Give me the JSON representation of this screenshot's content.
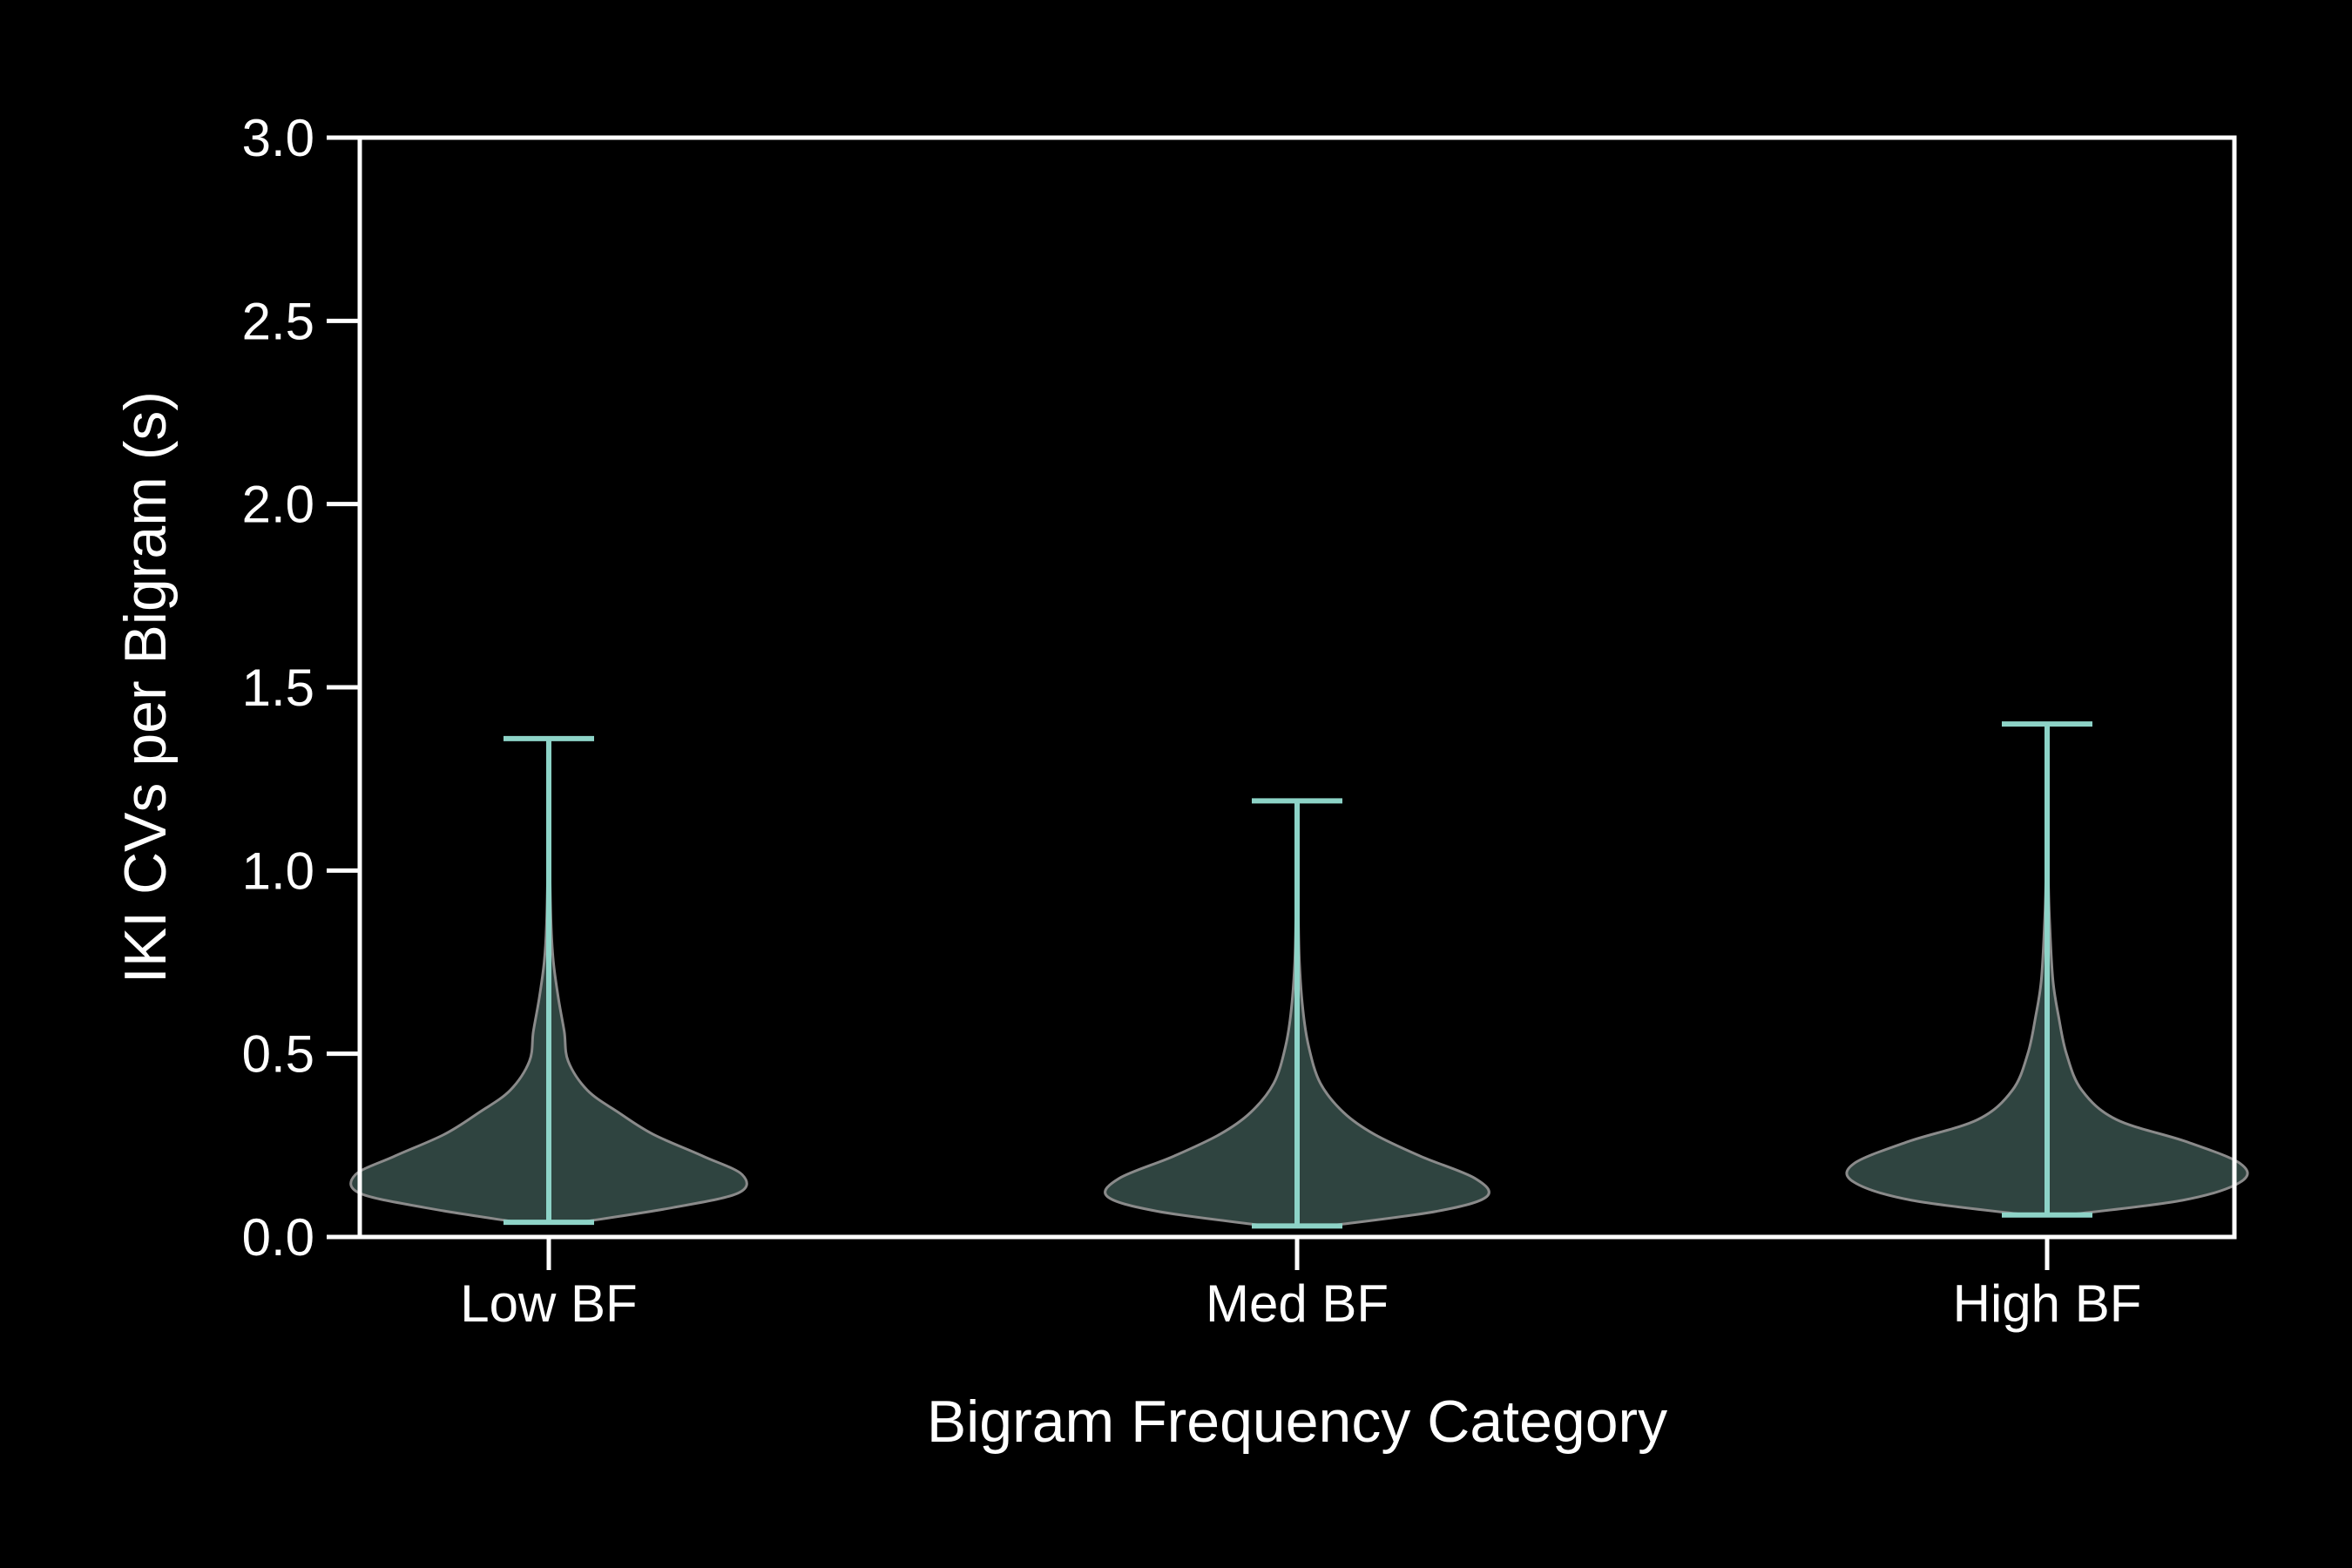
{
  "chart_data": {
    "type": "violin",
    "title": "",
    "xlabel": "Bigram Frequency Category",
    "ylabel": "IKI CVs per Bigram (s)",
    "categories": [
      "Low BF",
      "Med BF",
      "High BF"
    ],
    "ylim": [
      0,
      3.0
    ],
    "yticks": [
      "0.0",
      "0.5",
      "1.0",
      "1.5",
      "2.0",
      "2.5",
      "3.0"
    ],
    "grid": false,
    "colors": {
      "background": "#000000",
      "axes": "#ffffff",
      "violin_fill": "#2f4440",
      "violin_edge": "#8a8a8a",
      "extrema_lines": "#8dd3c7"
    },
    "violins": [
      {
        "category": "Low BF",
        "min": 0.04,
        "max": 1.36,
        "density": [
          [
            0.04,
            0.08
          ],
          [
            0.08,
            0.32
          ],
          [
            0.12,
            0.49
          ],
          [
            0.17,
            0.5
          ],
          [
            0.22,
            0.4
          ],
          [
            0.28,
            0.27
          ],
          [
            0.34,
            0.18
          ],
          [
            0.4,
            0.1
          ],
          [
            0.48,
            0.05
          ],
          [
            0.56,
            0.04
          ],
          [
            0.65,
            0.025
          ],
          [
            0.75,
            0.012
          ],
          [
            0.85,
            0.006
          ],
          [
            1.0,
            0.003
          ],
          [
            1.36,
            0.0
          ]
        ]
      },
      {
        "category": "Med BF",
        "min": 0.03,
        "max": 1.19,
        "density": [
          [
            0.03,
            0.08
          ],
          [
            0.07,
            0.36
          ],
          [
            0.11,
            0.49
          ],
          [
            0.16,
            0.46
          ],
          [
            0.22,
            0.32
          ],
          [
            0.28,
            0.2
          ],
          [
            0.34,
            0.12
          ],
          [
            0.42,
            0.06
          ],
          [
            0.52,
            0.03
          ],
          [
            0.62,
            0.015
          ],
          [
            0.75,
            0.006
          ],
          [
            0.9,
            0.003
          ],
          [
            1.19,
            0.0
          ]
        ]
      },
      {
        "category": "High BF",
        "min": 0.06,
        "max": 1.4,
        "density": [
          [
            0.06,
            0.05
          ],
          [
            0.1,
            0.35
          ],
          [
            0.15,
            0.5
          ],
          [
            0.2,
            0.5
          ],
          [
            0.26,
            0.36
          ],
          [
            0.32,
            0.18
          ],
          [
            0.4,
            0.09
          ],
          [
            0.5,
            0.05
          ],
          [
            0.6,
            0.03
          ],
          [
            0.7,
            0.015
          ],
          [
            0.85,
            0.007
          ],
          [
            1.0,
            0.003
          ],
          [
            1.4,
            0.0
          ]
        ]
      }
    ]
  }
}
